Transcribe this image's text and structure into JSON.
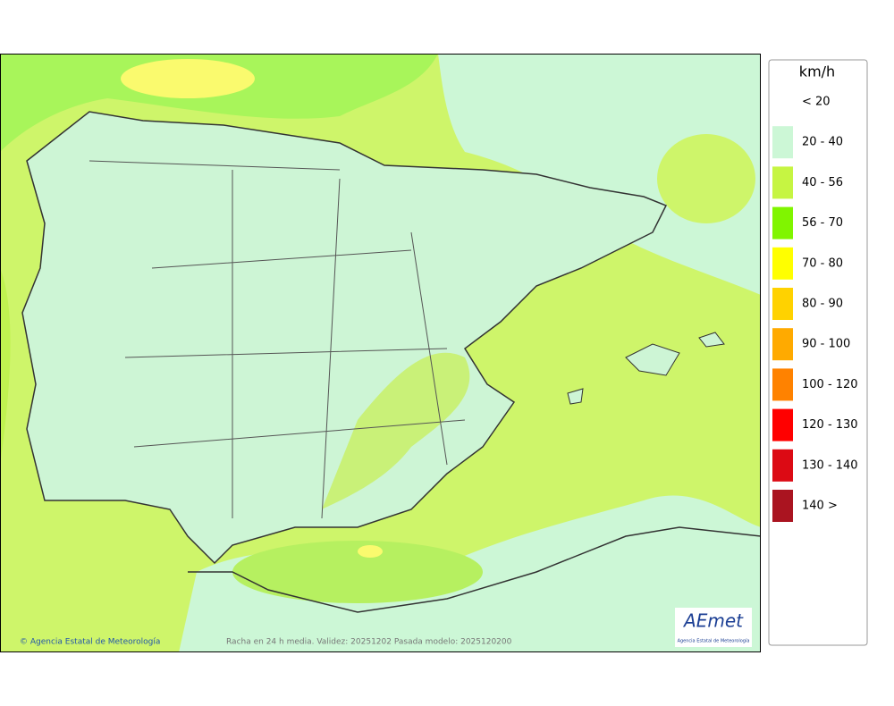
{
  "legend": {
    "title": "km/h",
    "items": [
      {
        "label": "< 20",
        "color": "#ffffff"
      },
      {
        "label": "20 - 40",
        "color": "#ccf7d6"
      },
      {
        "label": "40 - 56",
        "color": "#c6f542"
      },
      {
        "label": "56 - 70",
        "color": "#80f500"
      },
      {
        "label": "70 - 80",
        "color": "#ffff00"
      },
      {
        "label": "80 - 90",
        "color": "#ffd200"
      },
      {
        "label": "90 - 100",
        "color": "#ffaa00"
      },
      {
        "label": "100 - 120",
        "color": "#ff8200"
      },
      {
        "label": "120 - 130",
        "color": "#ff0000"
      },
      {
        "label": "130 - 140",
        "color": "#dc0a14"
      },
      {
        "label": "140 >",
        "color": "#aa1420"
      }
    ]
  },
  "footer": {
    "credit": "© Agencia Estatal de Meteorología",
    "caption": "Racha en 24 h media. Validez: 20251202 Pasada modelo: 2025120200"
  },
  "logo": {
    "name": "AEmet",
    "subtitle": "Agencia Estatal de Meteorología"
  }
}
